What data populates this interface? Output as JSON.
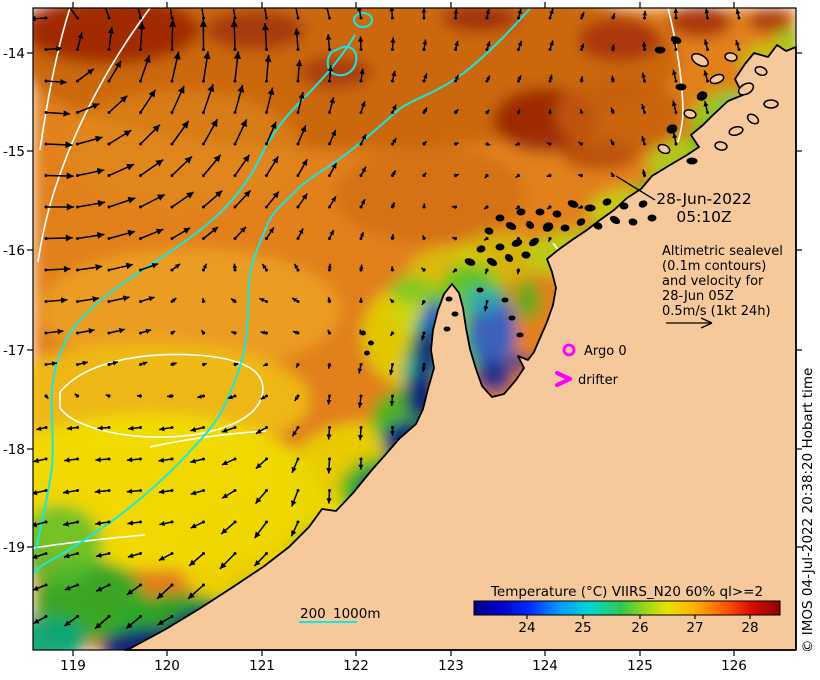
{
  "timestamp": {
    "date": "28-Jun-2022",
    "time": "05:10Z"
  },
  "axes": {
    "x_ticks": [
      "119",
      "120",
      "121",
      "122",
      "123",
      "124",
      "125",
      "126"
    ],
    "y_ticks": [
      "-14",
      "-15",
      "-16",
      "-17",
      "-18",
      "-19"
    ]
  },
  "legend": {
    "altimetric_note": [
      "Altimetric sealevel",
      "(0.1m contours)",
      "and velocity for",
      "28-Jun 05Z",
      "0.5m/s (1kt 24h)"
    ],
    "argo_label": "Argo 0",
    "drifter_label": "drifter",
    "bathy_200": "200",
    "bathy_1000": "1000m"
  },
  "colorbar": {
    "title": "Temperature (°C) VIIRS_N20 60% ql>=2",
    "tick_labels": [
      "24",
      "25",
      "26",
      "27",
      "28"
    ]
  },
  "watermark": "© IMOS 04-Jul-2022 20:38:20 Hobart time",
  "colors": {
    "land": "#f6c99c",
    "ocean_base": "#e2801c",
    "magenta": "#ff00ff",
    "isobath_cyan": "#15e8e0",
    "contour_white": "#ffffff",
    "arrow": "#000000"
  }
}
